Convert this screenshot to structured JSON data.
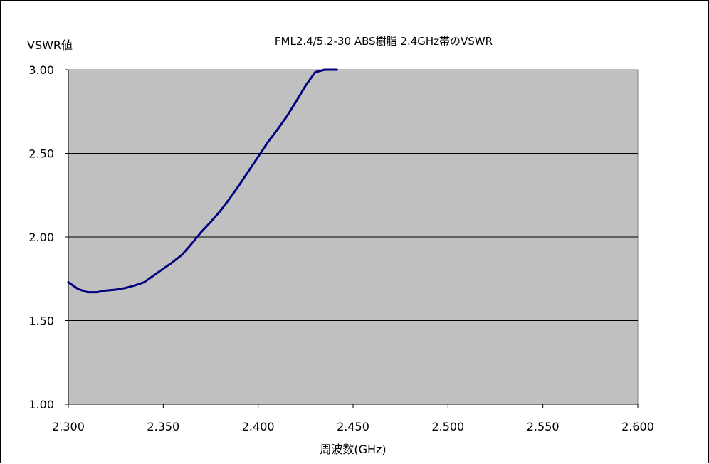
{
  "chart_data": {
    "type": "line",
    "title": "FML2.4/5.2-30 ABS樹脂 2.4GHz帯のVSWR",
    "ylabel": "VSWR値",
    "xlabel": "周波数(GHz)",
    "xlim": [
      2.3,
      2.6
    ],
    "ylim": [
      1.0,
      3.0
    ],
    "x_ticks": [
      "2.300",
      "2.350",
      "2.400",
      "2.450",
      "2.500",
      "2.550",
      "2.600"
    ],
    "y_ticks": [
      "1.00",
      "1.50",
      "2.00",
      "2.50",
      "3.00"
    ],
    "grid": "horizontal",
    "plot_background": "#c0c0c0",
    "series": [
      {
        "color": "#000080",
        "x": [
          2.3,
          2.305,
          2.31,
          2.315,
          2.32,
          2.325,
          2.33,
          2.335,
          2.34,
          2.345,
          2.35,
          2.355,
          2.36,
          2.365,
          2.37,
          2.375,
          2.38,
          2.385,
          2.39,
          2.395,
          2.4,
          2.405,
          2.41,
          2.415,
          2.42,
          2.425,
          2.43,
          2.435,
          2.44,
          2.4415
        ],
        "values": [
          1.73,
          1.69,
          1.67,
          1.67,
          1.68,
          1.685,
          1.695,
          1.71,
          1.73,
          1.77,
          1.81,
          1.85,
          1.895,
          1.96,
          2.03,
          2.09,
          2.155,
          2.23,
          2.31,
          2.395,
          2.48,
          2.565,
          2.64,
          2.72,
          2.81,
          2.905,
          2.985,
          3.0,
          3.0,
          3.0
        ]
      }
    ]
  }
}
